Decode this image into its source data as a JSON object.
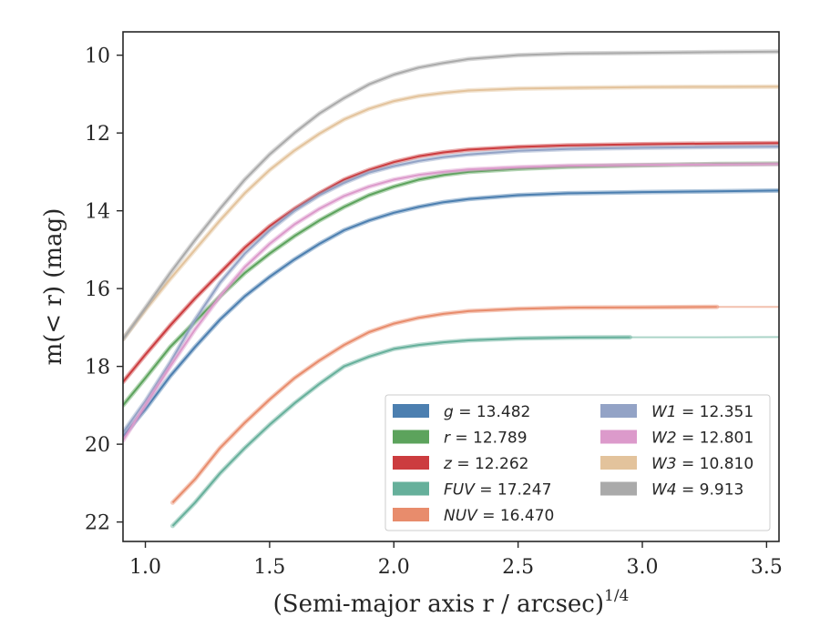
{
  "chart_data": {
    "type": "line",
    "title": "",
    "xlabel": "(Semi-major axis r / arcsec)",
    "xlabel_power": "1/4",
    "ylabel": "m(< r) (mag)",
    "xlim": [
      0.91,
      3.55
    ],
    "ylim": [
      22.5,
      9.4
    ],
    "y_inverted": true,
    "grid": false,
    "legend_position": "lower-right",
    "x_ticks": [
      "1.0",
      "1.5",
      "2.0",
      "2.5",
      "3.0",
      "3.5"
    ],
    "y_ticks": [
      "10",
      "12",
      "14",
      "16",
      "18",
      "20",
      "22"
    ],
    "series": [
      {
        "name": "g",
        "value": "13.482",
        "color": "#4c7fb0",
        "x_start": 0.91,
        "x_solid_end": 3.55,
        "points": [
          [
            0.91,
            19.8
          ],
          [
            1.0,
            19.1
          ],
          [
            1.1,
            18.25
          ],
          [
            1.2,
            17.5
          ],
          [
            1.3,
            16.8
          ],
          [
            1.4,
            16.2
          ],
          [
            1.5,
            15.7
          ],
          [
            1.6,
            15.25
          ],
          [
            1.7,
            14.85
          ],
          [
            1.8,
            14.5
          ],
          [
            1.9,
            14.25
          ],
          [
            2.0,
            14.05
          ],
          [
            2.1,
            13.9
          ],
          [
            2.2,
            13.78
          ],
          [
            2.3,
            13.7
          ],
          [
            2.5,
            13.6
          ],
          [
            2.7,
            13.55
          ],
          [
            3.0,
            13.52
          ],
          [
            3.3,
            13.5
          ],
          [
            3.55,
            13.48
          ]
        ]
      },
      {
        "name": "r",
        "value": "12.789",
        "color": "#5ca35c",
        "x_start": 0.91,
        "x_solid_end": 3.55,
        "points": [
          [
            0.91,
            19.0
          ],
          [
            1.0,
            18.3
          ],
          [
            1.1,
            17.5
          ],
          [
            1.2,
            16.85
          ],
          [
            1.3,
            16.2
          ],
          [
            1.4,
            15.6
          ],
          [
            1.5,
            15.1
          ],
          [
            1.6,
            14.65
          ],
          [
            1.7,
            14.25
          ],
          [
            1.8,
            13.9
          ],
          [
            1.9,
            13.6
          ],
          [
            2.0,
            13.38
          ],
          [
            2.1,
            13.2
          ],
          [
            2.2,
            13.08
          ],
          [
            2.3,
            13.0
          ],
          [
            2.5,
            12.92
          ],
          [
            2.7,
            12.87
          ],
          [
            3.0,
            12.83
          ],
          [
            3.3,
            12.8
          ],
          [
            3.55,
            12.79
          ]
        ]
      },
      {
        "name": "z",
        "value": "12.262",
        "color": "#cc3c3f",
        "x_start": 0.91,
        "x_solid_end": 3.55,
        "points": [
          [
            0.91,
            18.4
          ],
          [
            1.0,
            17.7
          ],
          [
            1.1,
            16.95
          ],
          [
            1.2,
            16.25
          ],
          [
            1.3,
            15.6
          ],
          [
            1.4,
            14.95
          ],
          [
            1.5,
            14.4
          ],
          [
            1.6,
            13.95
          ],
          [
            1.7,
            13.55
          ],
          [
            1.8,
            13.2
          ],
          [
            1.9,
            12.95
          ],
          [
            2.0,
            12.75
          ],
          [
            2.1,
            12.6
          ],
          [
            2.2,
            12.5
          ],
          [
            2.3,
            12.43
          ],
          [
            2.5,
            12.36
          ],
          [
            2.7,
            12.32
          ],
          [
            3.0,
            12.29
          ],
          [
            3.3,
            12.27
          ],
          [
            3.55,
            12.26
          ]
        ]
      },
      {
        "name": "FUV",
        "value": "17.247",
        "color": "#66b09b",
        "x_start": 1.11,
        "x_solid_end": 2.95,
        "points": [
          [
            1.11,
            22.1
          ],
          [
            1.2,
            21.5
          ],
          [
            1.3,
            20.75
          ],
          [
            1.4,
            20.1
          ],
          [
            1.5,
            19.5
          ],
          [
            1.6,
            18.95
          ],
          [
            1.7,
            18.45
          ],
          [
            1.8,
            18.0
          ],
          [
            1.9,
            17.75
          ],
          [
            2.0,
            17.55
          ],
          [
            2.1,
            17.45
          ],
          [
            2.2,
            17.38
          ],
          [
            2.3,
            17.33
          ],
          [
            2.5,
            17.28
          ],
          [
            2.7,
            17.26
          ],
          [
            2.95,
            17.25
          ],
          [
            3.3,
            17.25
          ],
          [
            3.55,
            17.247
          ]
        ]
      },
      {
        "name": "NUV",
        "value": "16.470",
        "color": "#e88c6c",
        "x_start": 1.11,
        "x_solid_end": 3.3,
        "points": [
          [
            1.11,
            21.5
          ],
          [
            1.2,
            20.9
          ],
          [
            1.3,
            20.1
          ],
          [
            1.4,
            19.45
          ],
          [
            1.5,
            18.85
          ],
          [
            1.6,
            18.3
          ],
          [
            1.7,
            17.85
          ],
          [
            1.8,
            17.45
          ],
          [
            1.9,
            17.12
          ],
          [
            2.0,
            16.9
          ],
          [
            2.1,
            16.75
          ],
          [
            2.2,
            16.65
          ],
          [
            2.3,
            16.58
          ],
          [
            2.5,
            16.52
          ],
          [
            2.7,
            16.49
          ],
          [
            3.0,
            16.48
          ],
          [
            3.3,
            16.47
          ],
          [
            3.55,
            16.47
          ]
        ]
      },
      {
        "name": "W1",
        "value": "12.351",
        "color": "#93a3c6",
        "x_start": 0.91,
        "x_solid_end": 3.55,
        "points": [
          [
            0.91,
            19.7
          ],
          [
            1.0,
            18.9
          ],
          [
            1.1,
            17.9
          ],
          [
            1.2,
            16.8
          ],
          [
            1.3,
            15.85
          ],
          [
            1.4,
            15.1
          ],
          [
            1.5,
            14.5
          ],
          [
            1.6,
            14.0
          ],
          [
            1.7,
            13.6
          ],
          [
            1.8,
            13.28
          ],
          [
            1.9,
            13.02
          ],
          [
            2.0,
            12.85
          ],
          [
            2.1,
            12.72
          ],
          [
            2.2,
            12.62
          ],
          [
            2.3,
            12.55
          ],
          [
            2.5,
            12.46
          ],
          [
            2.7,
            12.41
          ],
          [
            3.0,
            12.38
          ],
          [
            3.3,
            12.36
          ],
          [
            3.55,
            12.35
          ]
        ]
      },
      {
        "name": "W2",
        "value": "12.801",
        "color": "#dc9acb",
        "x_start": 0.91,
        "x_solid_end": 3.55,
        "points": [
          [
            0.91,
            19.9
          ],
          [
            1.0,
            19.0
          ],
          [
            1.1,
            18.0
          ],
          [
            1.2,
            17.05
          ],
          [
            1.3,
            16.2
          ],
          [
            1.4,
            15.45
          ],
          [
            1.5,
            14.85
          ],
          [
            1.6,
            14.35
          ],
          [
            1.7,
            13.95
          ],
          [
            1.8,
            13.62
          ],
          [
            1.9,
            13.38
          ],
          [
            2.0,
            13.2
          ],
          [
            2.1,
            13.08
          ],
          [
            2.2,
            13.0
          ],
          [
            2.3,
            12.94
          ],
          [
            2.5,
            12.88
          ],
          [
            2.7,
            12.84
          ],
          [
            3.0,
            12.82
          ],
          [
            3.3,
            12.81
          ],
          [
            3.55,
            12.8
          ]
        ]
      },
      {
        "name": "W3",
        "value": "10.810",
        "color": "#e3c39c",
        "x_start": 0.91,
        "x_solid_end": 3.55,
        "points": [
          [
            0.91,
            17.3
          ],
          [
            1.0,
            16.55
          ],
          [
            1.1,
            15.75
          ],
          [
            1.2,
            15.0
          ],
          [
            1.3,
            14.25
          ],
          [
            1.4,
            13.55
          ],
          [
            1.5,
            12.95
          ],
          [
            1.6,
            12.45
          ],
          [
            1.7,
            12.02
          ],
          [
            1.8,
            11.65
          ],
          [
            1.9,
            11.38
          ],
          [
            2.0,
            11.18
          ],
          [
            2.1,
            11.05
          ],
          [
            2.2,
            10.97
          ],
          [
            2.3,
            10.91
          ],
          [
            2.5,
            10.86
          ],
          [
            2.7,
            10.84
          ],
          [
            3.0,
            10.82
          ],
          [
            3.3,
            10.815
          ],
          [
            3.55,
            10.81
          ]
        ]
      },
      {
        "name": "W4",
        "value": "9.913",
        "color": "#aaaaaa",
        "x_start": 0.91,
        "x_solid_end": 3.55,
        "points": [
          [
            0.91,
            17.3
          ],
          [
            1.0,
            16.5
          ],
          [
            1.1,
            15.6
          ],
          [
            1.2,
            14.75
          ],
          [
            1.3,
            13.95
          ],
          [
            1.4,
            13.2
          ],
          [
            1.5,
            12.55
          ],
          [
            1.6,
            12.0
          ],
          [
            1.7,
            11.5
          ],
          [
            1.8,
            11.1
          ],
          [
            1.9,
            10.75
          ],
          [
            2.0,
            10.5
          ],
          [
            2.1,
            10.32
          ],
          [
            2.2,
            10.2
          ],
          [
            2.3,
            10.1
          ],
          [
            2.5,
            10.0
          ],
          [
            2.7,
            9.96
          ],
          [
            3.0,
            9.94
          ],
          [
            3.3,
            9.92
          ],
          [
            3.55,
            9.91
          ]
        ]
      }
    ],
    "legend_columns": [
      [
        "g",
        "r",
        "z",
        "FUV",
        "NUV"
      ],
      [
        "W1",
        "W2",
        "W3",
        "W4"
      ]
    ]
  }
}
